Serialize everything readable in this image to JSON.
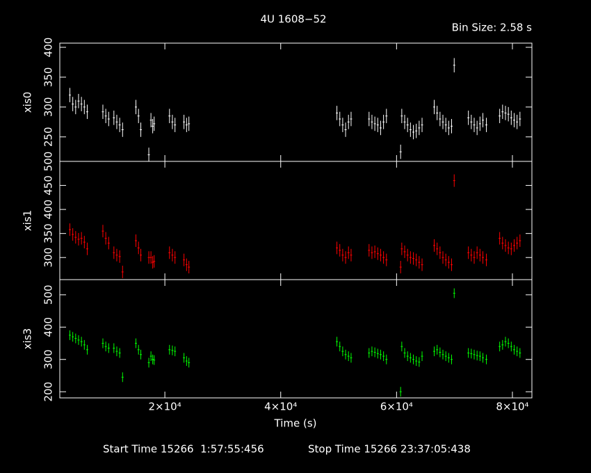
{
  "header": {
    "title": "4U 1608−52",
    "bin_size": "Bin Size: 2.58 s"
  },
  "footer": {
    "start": "Start Time 15266  1:57:55:456",
    "stop": "Stop Time 15266 23:37:05:438"
  },
  "chart_data": {
    "type": "errorbar",
    "xlabel": "Time (s)",
    "xlim": [
      1862,
      83363
    ],
    "xticks": [
      {
        "value": 20000,
        "label": "2×10⁴"
      },
      {
        "value": 40000,
        "label": "4×10⁴"
      },
      {
        "value": 60000,
        "label": "6×10⁴"
      },
      {
        "value": 80000,
        "label": "8×10⁴"
      }
    ],
    "x": [
      3600,
      4100,
      4600,
      5100,
      5600,
      6100,
      6600,
      9300,
      9800,
      10300,
      11200,
      11700,
      12200,
      12700,
      15000,
      15450,
      15850,
      17230,
      17600,
      17900,
      18150,
      20800,
      21300,
      21750,
      23300,
      23750,
      24150,
      49700,
      50200,
      50700,
      51200,
      51700,
      52150,
      55250,
      55750,
      56250,
      56750,
      57250,
      57750,
      58250,
      60700,
      60900,
      61400,
      61900,
      62400,
      62900,
      63400,
      63900,
      64400,
      66500,
      67000,
      67500,
      68000,
      68500,
      69000,
      69500,
      69950,
      72400,
      72900,
      73400,
      73900,
      74400,
      74900,
      75500,
      77800,
      78300,
      78800,
      79300,
      79800,
      80300,
      80800,
      81300
    ],
    "series": [
      {
        "name": "xis0",
        "color": "#ffffff",
        "ylim": [
          209,
          407
        ],
        "yticks": [
          250,
          300,
          350,
          400
        ],
        "error": 12,
        "values": [
          320,
          305,
          300,
          310,
          305,
          300,
          292,
          292,
          285,
          280,
          282,
          275,
          270,
          262,
          300,
          285,
          262,
          220,
          278,
          268,
          272,
          285,
          275,
          270,
          275,
          270,
          272,
          290,
          280,
          270,
          262,
          275,
          280,
          280,
          275,
          272,
          270,
          265,
          275,
          285,
          225,
          285,
          275,
          270,
          262,
          258,
          260,
          265,
          270,
          300,
          290,
          280,
          275,
          270,
          265,
          268,
          370,
          282,
          275,
          270,
          265,
          272,
          278,
          270,
          285,
          292,
          290,
          288,
          282,
          278,
          275,
          280
        ]
      },
      {
        "name": "xis1",
        "color": "#ff0000",
        "ylim": [
          254,
          500
        ],
        "yticks": [
          300,
          350,
          400,
          450,
          500
        ],
        "error": 13,
        "values": [
          358,
          348,
          342,
          338,
          340,
          332,
          318,
          355,
          340,
          330,
          310,
          305,
          302,
          270,
          335,
          320,
          305,
          300,
          300,
          290,
          292,
          310,
          305,
          300,
          295,
          285,
          280,
          320,
          315,
          305,
          300,
          310,
          305,
          315,
          310,
          312,
          308,
          305,
          300,
          295,
          280,
          318,
          312,
          305,
          300,
          298,
          295,
          290,
          285,
          325,
          318,
          310,
          300,
          295,
          290,
          285,
          460,
          310,
          305,
          300,
          310,
          305,
          300,
          295,
          340,
          330,
          325,
          320,
          318,
          325,
          330,
          335
        ]
      },
      {
        "name": "xis3",
        "color": "#00ff00",
        "ylim": [
          181,
          547
        ],
        "yticks": [
          200,
          300,
          400,
          500
        ],
        "error": 15,
        "values": [
          375,
          370,
          365,
          360,
          355,
          345,
          330,
          350,
          340,
          335,
          335,
          325,
          320,
          245,
          350,
          330,
          315,
          290,
          310,
          300,
          298,
          330,
          328,
          325,
          305,
          295,
          290,
          355,
          340,
          325,
          315,
          310,
          305,
          320,
          325,
          322,
          318,
          315,
          310,
          300,
          200,
          340,
          320,
          310,
          305,
          300,
          295,
          292,
          310,
          325,
          330,
          322,
          315,
          310,
          305,
          300,
          505,
          320,
          318,
          315,
          312,
          310,
          305,
          300,
          340,
          345,
          355,
          350,
          340,
          330,
          325,
          320
        ]
      }
    ]
  }
}
